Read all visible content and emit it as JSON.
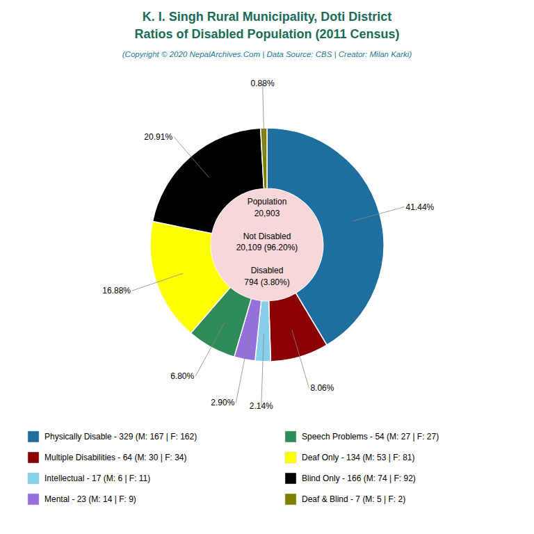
{
  "chart_data": {
    "type": "donut",
    "title": "K. I. Singh Rural Municipality, Doti District\nRatios of Disabled Population (2011 Census)",
    "subtitle": "(Copyright © 2020 NepalArchives.Com | Data Source: CBS | Creator: Milan Karki)",
    "categories": [
      "Physically Disable - 329 (M: 167 | F: 162)",
      "Multiple Disabilities - 64 (M: 30 | F: 34)",
      "Intellectual - 17 (M: 6 | F: 11)",
      "Mental - 23 (M: 14 | F: 9)",
      "Speech Problems - 54 (M: 27 | F: 27)",
      "Deaf Only - 134 (M: 53 | F: 81)",
      "Blind Only - 166 (M: 74 | F: 92)",
      "Deaf & Blind - 7 (M: 5 | F: 2)"
    ],
    "values": [
      41.44,
      8.06,
      2.14,
      2.9,
      6.8,
      16.88,
      20.91,
      0.88
    ],
    "value_labels": [
      "41.44%",
      "8.06%",
      "2.14%",
      "2.90%",
      "6.80%",
      "16.88%",
      "20.91%",
      "0.88%"
    ],
    "colors": [
      "#1e6e9f",
      "#8b0000",
      "#87ceeb",
      "#9370db",
      "#2e8b57",
      "#ffff00",
      "#000000",
      "#808000"
    ],
    "data_labels": true,
    "legend": "bottom",
    "annotations": [
      "Population",
      "20,903",
      "Not Disabled",
      "20,109 (96.20%)",
      "Disabled",
      "794 (3.80%)"
    ]
  }
}
